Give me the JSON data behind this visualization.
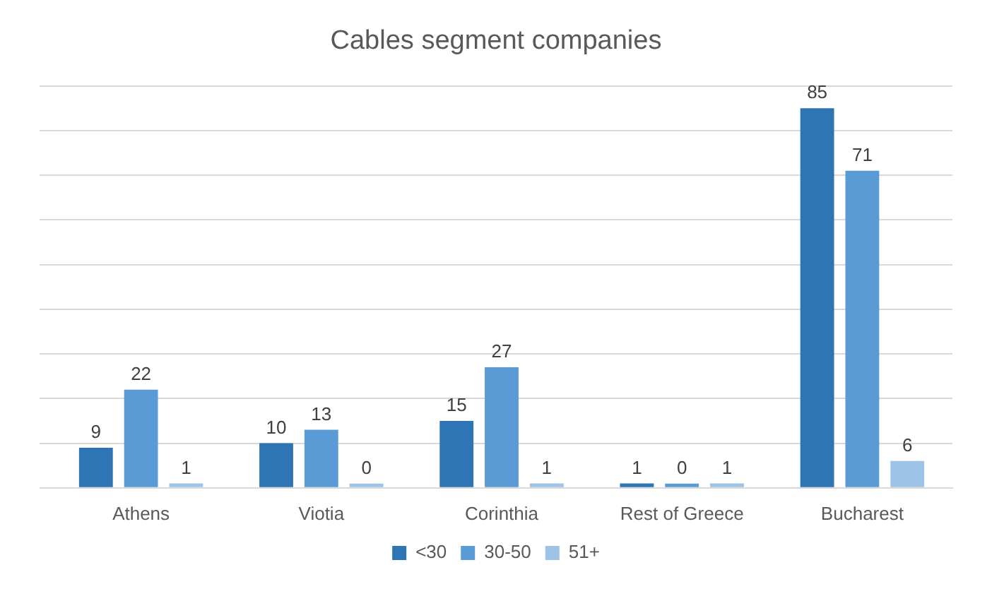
{
  "chart_data": {
    "type": "bar",
    "title": "Cables segment companies",
    "categories": [
      "Athens",
      "Viotia",
      "Corinthia",
      "Rest of Greece",
      "Bucharest"
    ],
    "series": [
      {
        "name": "<30",
        "color": "#2e75b6",
        "values": [
          9,
          10,
          15,
          1,
          85
        ]
      },
      {
        "name": "30-50",
        "color": "#5b9bd5",
        "values": [
          22,
          13,
          27,
          0,
          71
        ]
      },
      {
        "name": "51+",
        "color": "#9dc3e6",
        "values": [
          1,
          0,
          1,
          1,
          6
        ]
      }
    ],
    "data_labels": true,
    "grid": "y",
    "legend": "bottom",
    "tick_labels": "x"
  }
}
